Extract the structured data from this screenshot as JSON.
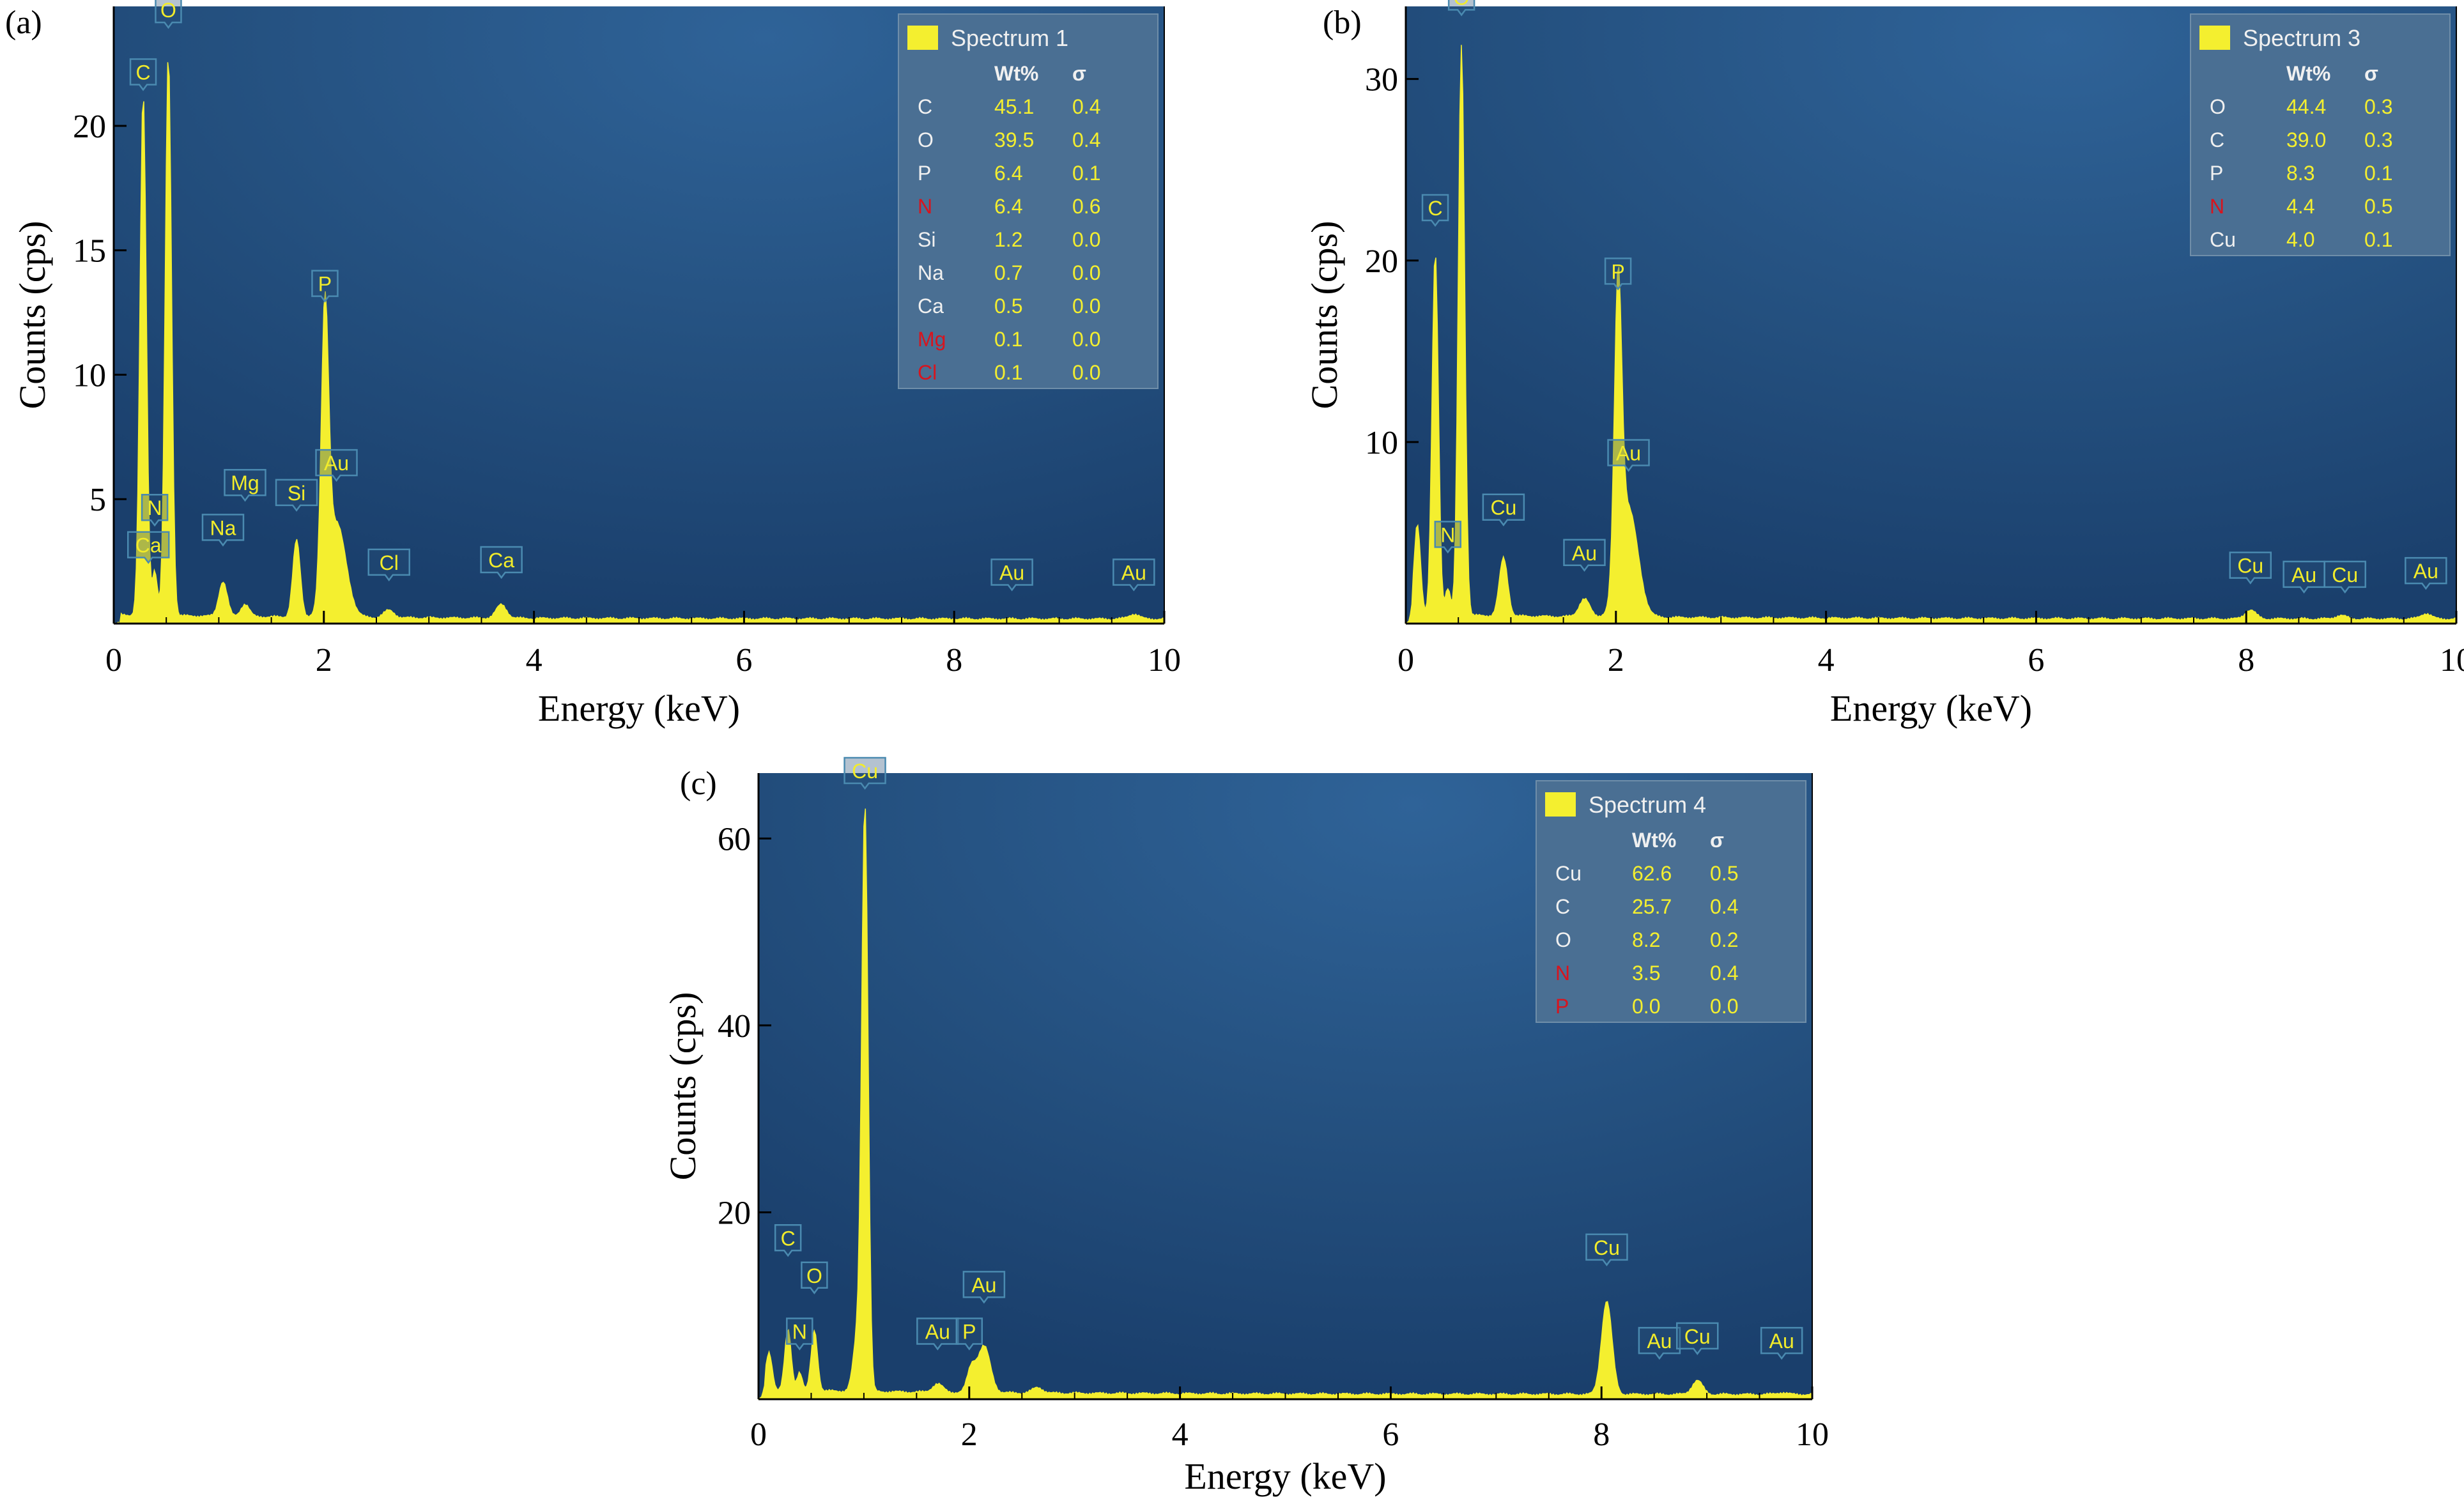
{
  "colors": {
    "plot_bg_center": "#2d5f94",
    "plot_bg_edge": "#1a3f6c",
    "spectrum_fill": "#f4ef2f",
    "peak_label_text": "#f2ec2a",
    "peak_label_border": "#4a8ab0",
    "legend_bg": "#4a6f93",
    "legend_text_light": "#f0f0f0",
    "legend_value": "#f4ef2f",
    "legend_element_red": "#d8141e"
  },
  "chart_data": [
    {
      "panel_label": "(a)",
      "type": "area",
      "xlabel": "Energy (keV)",
      "ylabel": "Counts (cps)",
      "xlim": [
        0,
        10
      ],
      "ylim": [
        0,
        24.8
      ],
      "xticks": [
        "0",
        "2",
        "4",
        "6",
        "8",
        "10"
      ],
      "xtick_values": [
        0,
        2,
        4,
        6,
        8,
        10
      ],
      "yticks": [
        "5",
        "10",
        "15",
        "20"
      ],
      "ytick_values": [
        5,
        10,
        15,
        20
      ],
      "grid": false,
      "legend_position": "top-right",
      "background": 0.35,
      "tail_baseline": 0.18,
      "peaks": [
        {
          "x": 0.28,
          "h": 21.0,
          "w": 0.03
        },
        {
          "x": 0.39,
          "h": 1.8,
          "w": 0.025
        },
        {
          "x": 0.52,
          "h": 22.6,
          "w": 0.03
        },
        {
          "x": 1.04,
          "h": 1.4,
          "w": 0.04
        },
        {
          "x": 1.25,
          "h": 0.5,
          "w": 0.04
        },
        {
          "x": 1.74,
          "h": 3.1,
          "w": 0.035
        },
        {
          "x": 2.01,
          "h": 11.3,
          "w": 0.035
        },
        {
          "x": 2.12,
          "h": 3.8,
          "w": 0.09
        },
        {
          "x": 2.62,
          "h": 0.3,
          "w": 0.05
        },
        {
          "x": 3.69,
          "h": 0.55,
          "w": 0.05
        },
        {
          "x": 9.71,
          "h": 0.2,
          "w": 0.05
        }
      ],
      "peak_labels": [
        {
          "text": "C",
          "x": 0.28,
          "y": 21.5
        },
        {
          "text": "O",
          "x": 0.52,
          "y": 24.0
        },
        {
          "text": "N",
          "x": 0.39,
          "y": 4.0
        },
        {
          "text": "Ca",
          "x": 0.33,
          "y": 2.5
        },
        {
          "text": "Na",
          "x": 1.04,
          "y": 3.2
        },
        {
          "text": "Mg",
          "x": 1.25,
          "y": 5.0
        },
        {
          "text": "Si",
          "x": 1.74,
          "y": 4.6
        },
        {
          "text": "P",
          "x": 2.01,
          "y": 13.0
        },
        {
          "text": "Au",
          "x": 2.12,
          "y": 5.8
        },
        {
          "text": "Cl",
          "x": 2.62,
          "y": 1.8
        },
        {
          "text": "Ca",
          "x": 3.69,
          "y": 1.9
        },
        {
          "text": "Au",
          "x": 8.55,
          "y": 1.4
        },
        {
          "text": "Au",
          "x": 9.71,
          "y": 1.4
        }
      ],
      "legend": {
        "title": "Spectrum 1",
        "header_wt": "Wt%",
        "header_sigma": "σ",
        "rows": [
          {
            "element": "C",
            "wt": "45.1",
            "sigma": "0.4",
            "highlight": false
          },
          {
            "element": "O",
            "wt": "39.5",
            "sigma": "0.4",
            "highlight": false
          },
          {
            "element": "P",
            "wt": "6.4",
            "sigma": "0.1",
            "highlight": false
          },
          {
            "element": "N",
            "wt": "6.4",
            "sigma": "0.6",
            "highlight": true
          },
          {
            "element": "Si",
            "wt": "1.2",
            "sigma": "0.0",
            "highlight": false
          },
          {
            "element": "Na",
            "wt": "0.7",
            "sigma": "0.0",
            "highlight": false
          },
          {
            "element": "Ca",
            "wt": "0.5",
            "sigma": "0.0",
            "highlight": false
          },
          {
            "element": "Mg",
            "wt": "0.1",
            "sigma": "0.0",
            "highlight": true
          },
          {
            "element": "Cl",
            "wt": "0.1",
            "sigma": "0.0",
            "highlight": true
          }
        ]
      }
    },
    {
      "panel_label": "(b)",
      "type": "area",
      "xlabel": "Energy (keV)",
      "ylabel": "Counts (cps)",
      "xlim": [
        0,
        10
      ],
      "ylim": [
        0,
        34
      ],
      "xticks": [
        "0",
        "2",
        "4",
        "6",
        "8",
        "10"
      ],
      "xtick_values": [
        0,
        2,
        4,
        6,
        8,
        10
      ],
      "yticks": [
        "10",
        "20",
        "30"
      ],
      "ytick_values": [
        10,
        20,
        30
      ],
      "grid": false,
      "legend_position": "top-right",
      "background": 0.5,
      "tail_baseline": 0.25,
      "peaks": [
        {
          "x": 0.11,
          "h": 5.0,
          "w": 0.03
        },
        {
          "x": 0.28,
          "h": 20.0,
          "w": 0.03
        },
        {
          "x": 0.4,
          "h": 1.5,
          "w": 0.025
        },
        {
          "x": 0.53,
          "h": 31.5,
          "w": 0.03
        },
        {
          "x": 0.93,
          "h": 3.2,
          "w": 0.04
        },
        {
          "x": 1.7,
          "h": 1.0,
          "w": 0.05
        },
        {
          "x": 2.02,
          "h": 16.2,
          "w": 0.035
        },
        {
          "x": 2.12,
          "h": 6.0,
          "w": 0.09
        },
        {
          "x": 8.04,
          "h": 0.5,
          "w": 0.05
        },
        {
          "x": 8.9,
          "h": 0.2,
          "w": 0.05
        },
        {
          "x": 9.71,
          "h": 0.3,
          "w": 0.05
        }
      ],
      "peak_labels": [
        {
          "text": "C",
          "x": 0.28,
          "y": 22.0
        },
        {
          "text": "O",
          "x": 0.53,
          "y": 33.6
        },
        {
          "text": "N",
          "x": 0.4,
          "y": 4.0
        },
        {
          "text": "Cu",
          "x": 0.93,
          "y": 5.5
        },
        {
          "text": "Au",
          "x": 1.7,
          "y": 3.0
        },
        {
          "text": "P",
          "x": 2.02,
          "y": 18.5
        },
        {
          "text": "Au",
          "x": 2.12,
          "y": 8.5
        },
        {
          "text": "Cu",
          "x": 8.04,
          "y": 2.3
        },
        {
          "text": "Au",
          "x": 8.55,
          "y": 1.8
        },
        {
          "text": "Cu",
          "x": 8.94,
          "y": 1.8
        },
        {
          "text": "Au",
          "x": 9.71,
          "y": 2.0
        }
      ],
      "legend": {
        "title": "Spectrum 3",
        "header_wt": "Wt%",
        "header_sigma": "σ",
        "rows": [
          {
            "element": "O",
            "wt": "44.4",
            "sigma": "0.3",
            "highlight": false
          },
          {
            "element": "C",
            "wt": "39.0",
            "sigma": "0.3",
            "highlight": false
          },
          {
            "element": "P",
            "wt": "8.3",
            "sigma": "0.1",
            "highlight": false
          },
          {
            "element": "N",
            "wt": "4.4",
            "sigma": "0.5",
            "highlight": true
          },
          {
            "element": "Cu",
            "wt": "4.0",
            "sigma": "0.1",
            "highlight": false
          }
        ]
      }
    },
    {
      "panel_label": "(c)",
      "type": "area",
      "xlabel": "Energy (keV)",
      "ylabel": "Counts (cps)",
      "xlim": [
        0,
        10
      ],
      "ylim": [
        0,
        67
      ],
      "xticks": [
        "0",
        "2",
        "4",
        "6",
        "8",
        "10"
      ],
      "xtick_values": [
        0,
        2,
        4,
        6,
        8,
        10
      ],
      "yticks": [
        "20",
        "40",
        "60"
      ],
      "ytick_values": [
        20,
        40,
        60
      ],
      "grid": false,
      "legend_position": "top-right",
      "background": 1.0,
      "tail_baseline": 0.5,
      "peaks": [
        {
          "x": 0.1,
          "h": 4.0,
          "w": 0.03
        },
        {
          "x": 0.28,
          "h": 6.5,
          "w": 0.03
        },
        {
          "x": 0.39,
          "h": 2.0,
          "w": 0.025
        },
        {
          "x": 0.53,
          "h": 6.5,
          "w": 0.03
        },
        {
          "x": 0.94,
          "h": 6.0,
          "w": 0.04
        },
        {
          "x": 1.01,
          "h": 62.0,
          "w": 0.03
        },
        {
          "x": 1.7,
          "h": 0.9,
          "w": 0.05
        },
        {
          "x": 2.02,
          "h": 2.5,
          "w": 0.04
        },
        {
          "x": 2.14,
          "h": 5.0,
          "w": 0.06
        },
        {
          "x": 2.65,
          "h": 0.6,
          "w": 0.05
        },
        {
          "x": 8.05,
          "h": 10.0,
          "w": 0.05
        },
        {
          "x": 8.91,
          "h": 1.5,
          "w": 0.05
        },
        {
          "x": 9.71,
          "h": 0.2,
          "w": 0.05
        }
      ],
      "peak_labels": [
        {
          "text": "C",
          "x": 0.28,
          "y": 15.5
        },
        {
          "text": "N",
          "x": 0.39,
          "y": 5.5
        },
        {
          "text": "O",
          "x": 0.53,
          "y": 11.5
        },
        {
          "text": "Cu",
          "x": 1.01,
          "y": 65.5
        },
        {
          "text": "Au",
          "x": 1.7,
          "y": 5.5
        },
        {
          "text": "P",
          "x": 2.0,
          "y": 5.5
        },
        {
          "text": "Au",
          "x": 2.14,
          "y": 10.5
        },
        {
          "text": "Cu",
          "x": 8.05,
          "y": 14.5
        },
        {
          "text": "Au",
          "x": 8.55,
          "y": 4.5
        },
        {
          "text": "Cu",
          "x": 8.91,
          "y": 5.0
        },
        {
          "text": "Au",
          "x": 9.71,
          "y": 4.5
        }
      ],
      "legend": {
        "title": "Spectrum 4",
        "header_wt": "Wt%",
        "header_sigma": "σ",
        "rows": [
          {
            "element": "Cu",
            "wt": "62.6",
            "sigma": "0.5",
            "highlight": false
          },
          {
            "element": "C",
            "wt": "25.7",
            "sigma": "0.4",
            "highlight": false
          },
          {
            "element": "O",
            "wt": "8.2",
            "sigma": "0.2",
            "highlight": false
          },
          {
            "element": "N",
            "wt": "3.5",
            "sigma": "0.4",
            "highlight": true
          },
          {
            "element": "P",
            "wt": "0.0",
            "sigma": "0.0",
            "highlight": true
          }
        ]
      }
    }
  ]
}
